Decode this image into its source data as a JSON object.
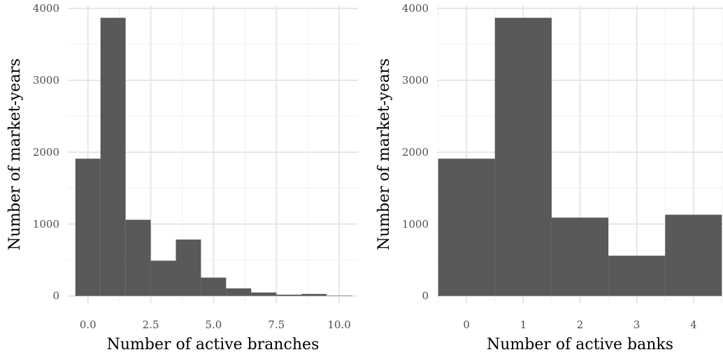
{
  "chart_data": [
    {
      "type": "bar",
      "xlabel": "Number of active branches",
      "ylabel": "Number of market-years",
      "bins": [
        0,
        1,
        2,
        3,
        4,
        5,
        6,
        7,
        8,
        9,
        10
      ],
      "values": [
        1910,
        3870,
        1060,
        490,
        785,
        255,
        105,
        48,
        18,
        28,
        5
      ],
      "bin_width": 1,
      "xlim": [
        -0.8,
        10.75
      ],
      "ylim": [
        -100,
        4040
      ],
      "xticks": [
        0,
        2.5,
        5,
        7.5,
        10
      ],
      "xtick_labels": [
        "0.0",
        "2.5",
        "5.0",
        "7.5",
        "10.0"
      ],
      "yticks": [
        0,
        1000,
        2000,
        3000,
        4000
      ],
      "ytick_labels": [
        "0",
        "1000",
        "2000",
        "3000",
        "4000"
      ],
      "bar_color": "#595959",
      "grid": true
    },
    {
      "type": "bar",
      "xlabel": "Number of active banks",
      "ylabel": "Number of market-years",
      "bins": [
        0,
        1,
        2,
        3,
        4
      ],
      "values": [
        1910,
        3870,
        1090,
        560,
        1130
      ],
      "bin_width": 1,
      "xlim": [
        -0.52,
        4.52
      ],
      "ylim": [
        -100,
        4040
      ],
      "xticks": [
        0,
        1,
        2,
        3,
        4
      ],
      "xtick_labels": [
        "0",
        "1",
        "2",
        "3",
        "4"
      ],
      "yticks": [
        0,
        1000,
        2000,
        3000,
        4000
      ],
      "ytick_labels": [
        "0",
        "1000",
        "2000",
        "3000",
        "4000"
      ],
      "bar_color": "#595959",
      "grid": true
    }
  ]
}
